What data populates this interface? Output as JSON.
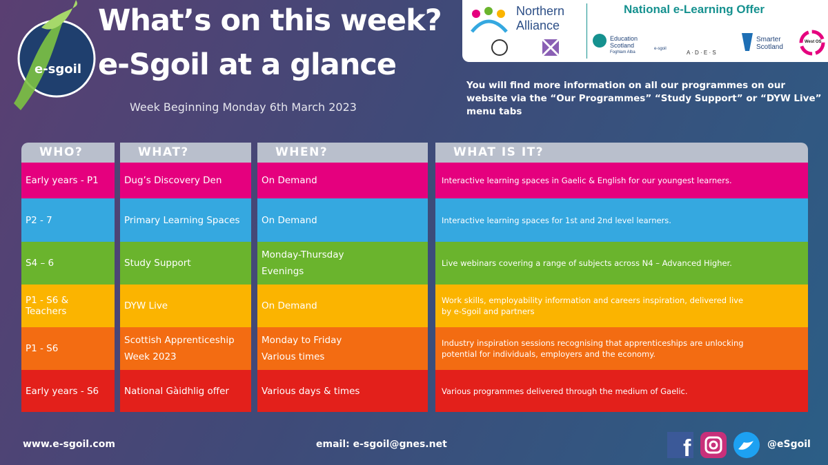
{
  "header": {
    "title": "What’s on this week?",
    "subtitle": "e-Sgoil at a glance",
    "week": "Week Beginning Monday 6th March 2023",
    "logo": "e-sgoil"
  },
  "partners": {
    "heading": "National e-Learning Offer",
    "logos": [
      "Northern",
      "Alliance",
      "Education Scotland",
      "Foghlam Alba",
      "e-sgoil",
      "A · D · E · S",
      "Smarter Scotland",
      "West OS"
    ]
  },
  "info": "You will find more information on all our programmes on our website via the “Our Programmes” “Study Support” or “DYW Live” menu tabs",
  "table": {
    "headers": [
      "WHO?",
      "WHAT?",
      "WHEN?",
      "WHAT IS IT?"
    ],
    "rows": [
      [
        "Early years - P1",
        "Dug’s Discovery Den",
        "On Demand",
        "Interactive learning spaces in Gaelic & English for our youngest learners."
      ],
      [
        "P2 - 7",
        "Primary Learning Spaces",
        "On Demand",
        "Interactive learning spaces for 1st and 2nd level learners."
      ],
      [
        "S4 – 6",
        "Study Support",
        "Monday-Thursday\nEvenings",
        "Live webinars covering a range of subjects across N4 – Advanced Higher."
      ],
      [
        "P1 - S6 &\nTeachers",
        "DYW Live",
        "On Demand",
        "Work skills, employability information and careers inspiration, delivered live\nby e-Sgoil and partners"
      ],
      [
        "P1 - S6",
        "Scottish Apprenticeship\nWeek 2023",
        "Monday to Friday\nVarious times",
        "Industry inspiration sessions recognising that apprenticeships are unlocking\npotential for individuals, employers and the economy."
      ],
      [
        "Early years - S6",
        "National Gàidhlig offer",
        "Various days & times",
        "Various programmes delivered through the medium of Gaelic."
      ]
    ]
  },
  "footer": {
    "website": "www.e-sgoil.com",
    "email": "email: e-sgoil@gnes.net",
    "handle": "@eSgoil"
  }
}
